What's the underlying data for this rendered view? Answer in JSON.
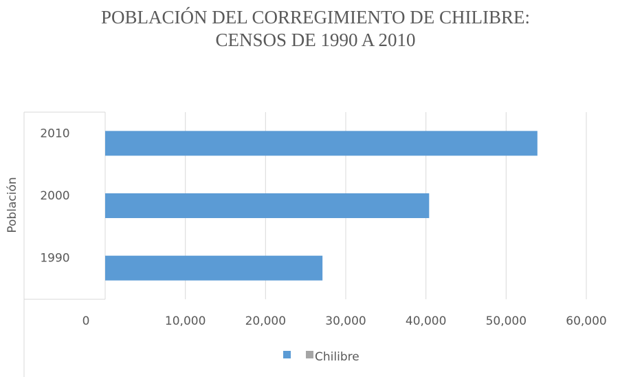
{
  "chart_data": {
    "type": "bar",
    "orientation": "horizontal",
    "title": [
      "POBLACIÓN DEL CORREGIMIENTO DE CHILIBRE:",
      "CENSOS DE 1990 A 2010"
    ],
    "y_label": "Población",
    "categories": [
      "1990",
      "2000",
      "2010"
    ],
    "series": [
      {
        "name": "Chilibre",
        "color": "#5b9bd5",
        "values": [
          27100,
          40400,
          53900
        ]
      }
    ],
    "xlim": [
      0,
      60000
    ],
    "xticks": [
      0,
      {
        "value": 10000,
        "label": "10,000"
      },
      {
        "value": 20000,
        "label": "20,000"
      },
      {
        "value": 30000,
        "label": "30,000"
      },
      {
        "value": 40000,
        "label": "40,000"
      },
      {
        "value": 50000,
        "label": "50,000"
      },
      {
        "value": 60000,
        "label": "60,000"
      }
    ],
    "grid": true,
    "legend": "bottom"
  }
}
